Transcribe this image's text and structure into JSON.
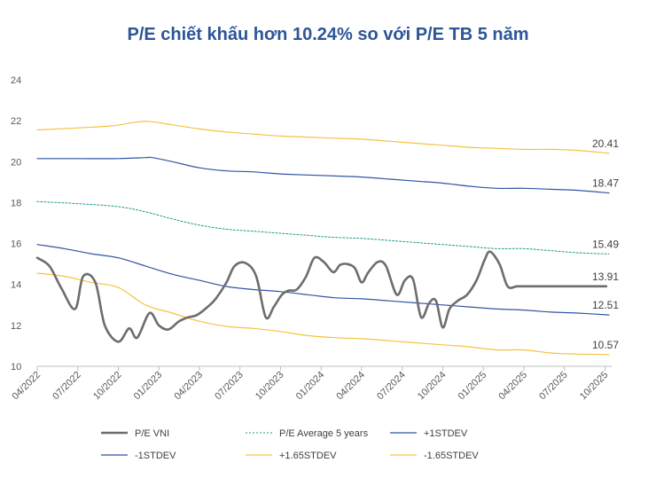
{
  "chart_data": {
    "type": "line",
    "title": "P/E chiết khấu hơn 10.24% so với P/E TB 5 năm",
    "ylim": [
      10,
      24
    ],
    "yticks": [
      "10",
      "12",
      "14",
      "16",
      "18",
      "20",
      "22",
      "24"
    ],
    "xlim": [
      0,
      42.5
    ],
    "xticks": [
      {
        "label": "04/2022",
        "x": 0
      },
      {
        "label": "07/2022",
        "x": 3
      },
      {
        "label": "10/2022",
        "x": 6
      },
      {
        "label": "01/2023",
        "x": 9
      },
      {
        "label": "04/2023",
        "x": 12
      },
      {
        "label": "07/2023",
        "x": 15
      },
      {
        "label": "10/2023",
        "x": 18
      },
      {
        "label": "01/2024",
        "x": 21
      },
      {
        "label": "04/2024",
        "x": 24
      },
      {
        "label": "07/2024",
        "x": 27
      },
      {
        "label": "10/2024",
        "x": 30
      },
      {
        "label": "01/2025",
        "x": 33
      },
      {
        "label": "04/2025",
        "x": 36
      },
      {
        "label": "07/2025",
        "x": 39
      },
      {
        "label": "10/2025",
        "x": 42
      }
    ],
    "series": [
      {
        "name": "+1.65STDEV",
        "color": "#f5c342",
        "width": 1.2,
        "dash": "",
        "x": [
          0,
          3,
          5.5,
          7.5,
          8.5,
          10,
          12,
          14,
          16,
          18,
          20,
          22,
          24,
          26,
          28,
          30,
          32,
          34,
          36,
          38,
          40,
          42.3
        ],
        "y": [
          21.55,
          21.65,
          21.75,
          21.95,
          21.95,
          21.8,
          21.6,
          21.45,
          21.35,
          21.25,
          21.2,
          21.15,
          21.1,
          21.0,
          20.9,
          20.8,
          20.7,
          20.65,
          20.6,
          20.6,
          20.55,
          20.41
        ],
        "end_label": "20.41",
        "end_value": 20.41
      },
      {
        "name": "+1STDEV",
        "color": "#2f55a4",
        "width": 1.2,
        "dash": "",
        "x": [
          0,
          3,
          6,
          8,
          8.5,
          10,
          12,
          14,
          16,
          18,
          20,
          22,
          24,
          26,
          28,
          30,
          32,
          34,
          36,
          38,
          40,
          42.3
        ],
        "y": [
          20.15,
          20.15,
          20.15,
          20.2,
          20.2,
          20.0,
          19.7,
          19.55,
          19.5,
          19.4,
          19.35,
          19.3,
          19.25,
          19.15,
          19.05,
          18.95,
          18.8,
          18.7,
          18.7,
          18.65,
          18.6,
          18.47
        ],
        "end_label": "18.47",
        "end_value": 18.47
      },
      {
        "name": "P/E Average 5 years",
        "color": "#1e9a8c",
        "width": 1.0,
        "dash": "2,2",
        "x": [
          0,
          3,
          6,
          8,
          10,
          12,
          14,
          16,
          18,
          20,
          22,
          24,
          26,
          28,
          30,
          32,
          34,
          36,
          38,
          40,
          42.3
        ],
        "y": [
          18.05,
          17.95,
          17.8,
          17.55,
          17.2,
          16.9,
          16.7,
          16.6,
          16.5,
          16.4,
          16.3,
          16.25,
          16.15,
          16.05,
          15.95,
          15.85,
          15.75,
          15.75,
          15.65,
          15.55,
          15.49
        ],
        "end_label": "15.49",
        "end_value": 15.49
      },
      {
        "name": "-1STDEV",
        "color": "#2f55a4",
        "width": 1.2,
        "dash": "",
        "x": [
          0,
          2,
          4,
          6,
          8,
          10,
          12,
          14,
          16,
          18,
          20,
          22,
          24,
          26,
          28,
          30,
          32,
          34,
          36,
          38,
          40,
          42.3
        ],
        "y": [
          15.95,
          15.75,
          15.5,
          15.3,
          14.9,
          14.5,
          14.2,
          13.9,
          13.75,
          13.65,
          13.5,
          13.35,
          13.3,
          13.2,
          13.1,
          13.0,
          12.9,
          12.8,
          12.75,
          12.65,
          12.6,
          12.51
        ],
        "end_label": "12.51",
        "end_value": 12.51
      },
      {
        "name": "-1.65STDEV",
        "color": "#f5c342",
        "width": 1.2,
        "dash": "",
        "x": [
          0,
          2,
          4,
          6,
          8,
          10,
          12,
          14,
          16,
          18,
          20,
          22,
          24,
          26,
          28,
          30,
          32,
          34,
          36,
          38,
          40,
          42.3
        ],
        "y": [
          14.55,
          14.4,
          14.1,
          13.85,
          13.0,
          12.6,
          12.2,
          11.95,
          11.85,
          11.7,
          11.5,
          11.4,
          11.35,
          11.25,
          11.15,
          11.05,
          10.95,
          10.8,
          10.8,
          10.65,
          10.6,
          10.57
        ],
        "end_label": "10.57",
        "end_value": 10.57
      },
      {
        "name": "P/E VNI",
        "color": "#6d6d6d",
        "width": 2.6,
        "dash": "",
        "x": [
          0,
          0.9,
          1.8,
          2.8,
          3.4,
          4.3,
          5.0,
          6.0,
          6.8,
          7.4,
          8.3,
          9.0,
          9.7,
          10.5,
          11.2,
          11.8,
          12.6,
          13.2,
          14.0,
          14.6,
          15.4,
          16.2,
          16.9,
          17.5,
          18.1,
          18.6,
          19.2,
          19.9,
          20.5,
          21.2,
          21.9,
          22.4,
          22.9,
          23.5,
          24.0,
          24.5,
          25.2,
          25.8,
          26.6,
          27.2,
          27.8,
          28.4,
          29.0,
          29.5,
          30.0,
          30.5,
          31.1,
          31.8,
          32.5,
          33.1,
          33.5,
          34.2,
          34.8,
          35.5,
          36.2,
          36.8,
          37.5,
          38.2,
          39.0,
          39.7,
          40.3,
          40.9,
          41.5,
          42.1
        ],
        "y": [
          15.3,
          14.9,
          13.8,
          12.8,
          14.4,
          14.1,
          12.0,
          11.2,
          11.85,
          11.4,
          12.6,
          12.0,
          11.8,
          12.2,
          12.4,
          12.5,
          12.9,
          13.3,
          14.1,
          14.9,
          15.05,
          14.4,
          12.4,
          12.9,
          13.5,
          13.7,
          13.75,
          14.4,
          15.3,
          15.1,
          14.6,
          14.95,
          15.0,
          14.8,
          14.1,
          14.6,
          15.1,
          14.9,
          13.5,
          14.2,
          14.25,
          12.4,
          13.1,
          13.2,
          11.9,
          12.8,
          13.2,
          13.5,
          14.2,
          15.2,
          15.6,
          15.0,
          13.91,
          13.91,
          13.91,
          13.91,
          13.91,
          13.91,
          13.91,
          13.91,
          13.91,
          13.91,
          13.91,
          13.91
        ],
        "end_label": "13.91",
        "end_value": 13.91
      }
    ],
    "legend": [
      {
        "label": "P/E VNI",
        "color": "#6d6d6d",
        "dash": "",
        "width": 2.6
      },
      {
        "label": "P/E Average 5 years",
        "color": "#1e9a8c",
        "dash": "2,2",
        "width": 1.0
      },
      {
        "label": "+1STDEV",
        "color": "#2f55a4",
        "dash": "",
        "width": 1.2
      },
      {
        "label": "-1STDEV",
        "color": "#2f55a4",
        "dash": "",
        "width": 1.2
      },
      {
        "label": "+1.65STDEV",
        "color": "#f5c342",
        "dash": "",
        "width": 1.2
      },
      {
        "label": "-1.65STDEV",
        "color": "#f5c342",
        "dash": "",
        "width": 1.2
      }
    ]
  }
}
